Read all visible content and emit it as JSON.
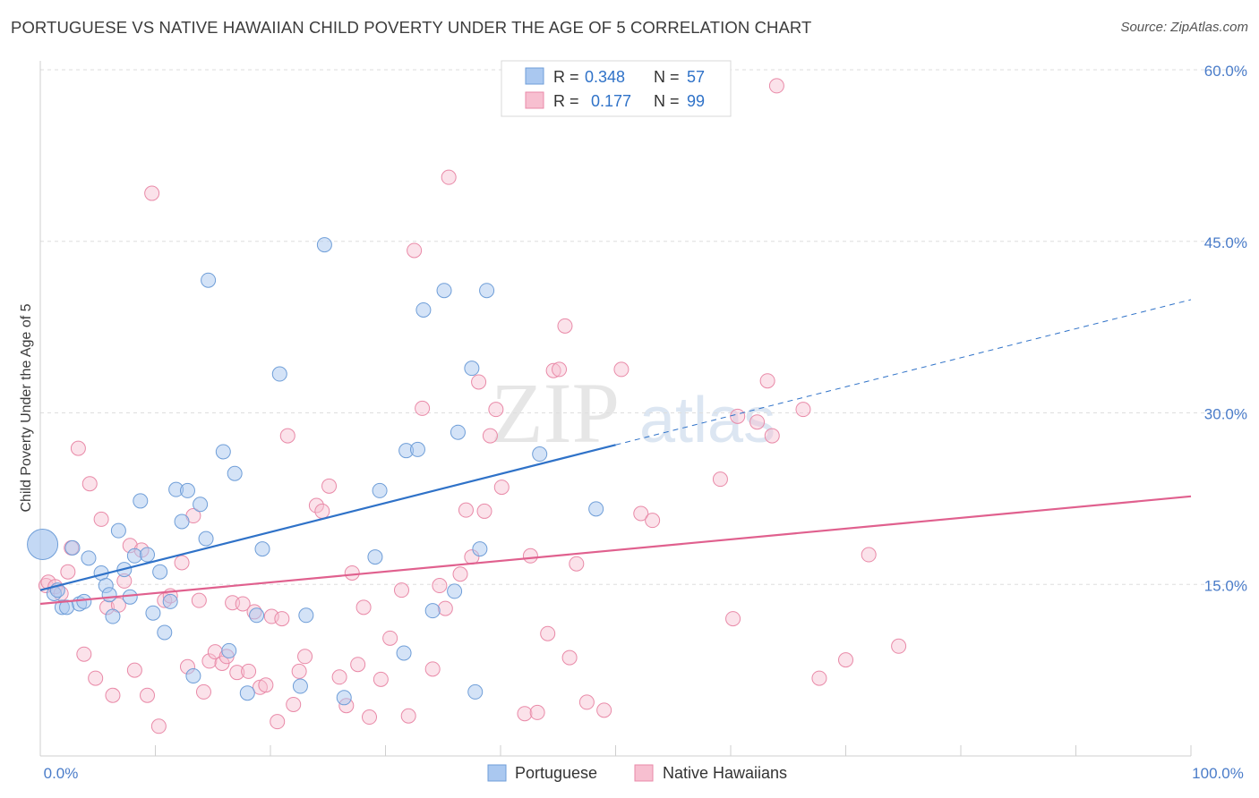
{
  "title": "PORTUGUESE VS NATIVE HAWAIIAN CHILD POVERTY UNDER THE AGE OF 5 CORRELATION CHART",
  "source": "Source: ZipAtlas.com",
  "watermark": {
    "zip": "ZIP",
    "atlas": "atlas"
  },
  "colors": {
    "portuguese_fill": "#aac8f0",
    "portuguese_stroke": "#6f9ed8",
    "portuguese_line": "#2f72c8",
    "hawaiian_fill": "#f7bfd0",
    "hawaiian_stroke": "#e98aa8",
    "hawaiian_line": "#e0608e",
    "axis_text": "#4a7cc9",
    "grid": "#dedede"
  },
  "legend_top": [
    {
      "r_label": "R =",
      "r_value": "0.348",
      "n_label": "N =",
      "n_value": "57"
    },
    {
      "r_label": "R =",
      "r_value": "0.177",
      "n_label": "N =",
      "n_value": "99"
    }
  ],
  "chart_data": {
    "type": "scatter",
    "title": "PORTUGUESE VS NATIVE HAWAIIAN CHILD POVERTY UNDER THE AGE OF 5 CORRELATION CHART",
    "xlabel": "",
    "ylabel": "Child Poverty Under the Age of 5",
    "xlim": [
      0,
      100
    ],
    "ylim": [
      0,
      60
    ],
    "x_tick_labels": [
      "0.0%",
      "100.0%"
    ],
    "y_ticks": [
      15,
      30,
      45,
      60
    ],
    "y_tick_labels": [
      "15.0%",
      "30.0%",
      "45.0%",
      "60.0%"
    ],
    "legend_position": "bottom-center",
    "series": [
      {
        "name": "Portuguese",
        "r": 0.348,
        "n": 57,
        "trend": {
          "x0": 0,
          "y0": 14.5,
          "x1": 50,
          "y1": 27.2,
          "x_dashed_end": 100,
          "y_dashed_end": 39.9
        },
        "points": [
          [
            0.2,
            18.5
          ],
          [
            1.2,
            14.2
          ],
          [
            1.5,
            14.5
          ],
          [
            1.9,
            13.0
          ],
          [
            2.3,
            13.0
          ],
          [
            2.8,
            18.2
          ],
          [
            3.4,
            13.3
          ],
          [
            3.8,
            13.5
          ],
          [
            4.2,
            17.3
          ],
          [
            5.3,
            16.0
          ],
          [
            5.7,
            14.9
          ],
          [
            6.0,
            14.1
          ],
          [
            6.3,
            12.2
          ],
          [
            6.8,
            19.7
          ],
          [
            7.3,
            16.3
          ],
          [
            7.8,
            13.9
          ],
          [
            8.2,
            17.5
          ],
          [
            8.7,
            22.3
          ],
          [
            9.3,
            17.6
          ],
          [
            9.8,
            12.5
          ],
          [
            10.4,
            16.1
          ],
          [
            10.8,
            10.8
          ],
          [
            11.3,
            13.5
          ],
          [
            11.8,
            23.3
          ],
          [
            12.3,
            20.5
          ],
          [
            12.8,
            23.2
          ],
          [
            13.3,
            7.0
          ],
          [
            13.9,
            22.0
          ],
          [
            14.4,
            19.0
          ],
          [
            14.6,
            41.6
          ],
          [
            15.9,
            26.6
          ],
          [
            16.4,
            9.2
          ],
          [
            16.9,
            24.7
          ],
          [
            18.0,
            5.5
          ],
          [
            18.8,
            12.3
          ],
          [
            19.3,
            18.1
          ],
          [
            20.8,
            33.4
          ],
          [
            22.6,
            6.1
          ],
          [
            23.1,
            12.3
          ],
          [
            24.7,
            44.7
          ],
          [
            26.4,
            5.1
          ],
          [
            29.1,
            17.4
          ],
          [
            29.5,
            23.2
          ],
          [
            31.6,
            9.0
          ],
          [
            31.8,
            26.7
          ],
          [
            32.8,
            26.8
          ],
          [
            33.3,
            39.0
          ],
          [
            34.1,
            12.7
          ],
          [
            35.1,
            40.7
          ],
          [
            36.0,
            14.4
          ],
          [
            36.3,
            28.3
          ],
          [
            37.5,
            33.9
          ],
          [
            37.8,
            5.6
          ],
          [
            38.2,
            18.1
          ],
          [
            38.8,
            40.7
          ],
          [
            43.4,
            26.4
          ],
          [
            48.3,
            21.6
          ]
        ]
      },
      {
        "name": "Native Hawaiians",
        "r": 0.177,
        "n": 99,
        "trend": {
          "x0": 0,
          "y0": 13.3,
          "x1": 100,
          "y1": 22.7
        },
        "points": [
          [
            0.5,
            14.9
          ],
          [
            0.7,
            15.2
          ],
          [
            1.3,
            14.8
          ],
          [
            1.8,
            14.2
          ],
          [
            2.4,
            16.1
          ],
          [
            2.7,
            18.2
          ],
          [
            3.3,
            26.9
          ],
          [
            3.8,
            8.9
          ],
          [
            4.3,
            23.8
          ],
          [
            4.8,
            6.8
          ],
          [
            5.3,
            20.7
          ],
          [
            5.8,
            13.0
          ],
          [
            6.3,
            5.3
          ],
          [
            6.8,
            13.2
          ],
          [
            7.3,
            15.3
          ],
          [
            7.8,
            18.4
          ],
          [
            8.2,
            7.5
          ],
          [
            8.8,
            18.0
          ],
          [
            9.3,
            5.3
          ],
          [
            9.7,
            49.2
          ],
          [
            10.3,
            2.6
          ],
          [
            10.8,
            13.6
          ],
          [
            11.3,
            14.0
          ],
          [
            12.3,
            16.9
          ],
          [
            12.8,
            7.8
          ],
          [
            13.3,
            21.0
          ],
          [
            13.8,
            13.6
          ],
          [
            14.2,
            5.6
          ],
          [
            14.7,
            8.3
          ],
          [
            15.2,
            9.1
          ],
          [
            15.8,
            8.1
          ],
          [
            16.2,
            8.7
          ],
          [
            16.7,
            13.4
          ],
          [
            17.1,
            7.3
          ],
          [
            17.6,
            13.3
          ],
          [
            18.1,
            7.4
          ],
          [
            18.6,
            12.6
          ],
          [
            19.1,
            6.0
          ],
          [
            19.6,
            6.2
          ],
          [
            20.1,
            12.2
          ],
          [
            20.6,
            3.0
          ],
          [
            21.0,
            12.0
          ],
          [
            21.5,
            28.0
          ],
          [
            22.0,
            4.5
          ],
          [
            22.5,
            7.4
          ],
          [
            23.0,
            8.7
          ],
          [
            24.0,
            21.9
          ],
          [
            24.5,
            21.4
          ],
          [
            25.1,
            23.6
          ],
          [
            26.0,
            6.9
          ],
          [
            26.6,
            4.4
          ],
          [
            27.1,
            16.0
          ],
          [
            27.6,
            8.0
          ],
          [
            28.1,
            13.0
          ],
          [
            28.6,
            3.4
          ],
          [
            29.6,
            6.7
          ],
          [
            30.4,
            10.3
          ],
          [
            31.4,
            14.5
          ],
          [
            32.0,
            3.5
          ],
          [
            32.5,
            44.2
          ],
          [
            33.2,
            30.4
          ],
          [
            34.1,
            7.6
          ],
          [
            34.7,
            14.9
          ],
          [
            35.2,
            12.9
          ],
          [
            35.5,
            50.6
          ],
          [
            36.5,
            15.9
          ],
          [
            37.0,
            21.5
          ],
          [
            37.5,
            17.4
          ],
          [
            38.1,
            32.7
          ],
          [
            38.6,
            21.4
          ],
          [
            39.1,
            28.0
          ],
          [
            39.6,
            30.3
          ],
          [
            40.1,
            23.5
          ],
          [
            42.1,
            3.7
          ],
          [
            42.6,
            17.5
          ],
          [
            43.2,
            3.8
          ],
          [
            44.1,
            10.7
          ],
          [
            44.6,
            33.7
          ],
          [
            45.1,
            33.8
          ],
          [
            45.6,
            37.6
          ],
          [
            46.0,
            8.6
          ],
          [
            46.6,
            16.8
          ],
          [
            47.5,
            4.7
          ],
          [
            49.0,
            4.0
          ],
          [
            50.5,
            33.8
          ],
          [
            52.2,
            21.2
          ],
          [
            53.2,
            20.6
          ],
          [
            59.1,
            24.2
          ],
          [
            60.2,
            12.0
          ],
          [
            60.6,
            29.7
          ],
          [
            62.3,
            29.2
          ],
          [
            63.2,
            32.8
          ],
          [
            63.6,
            28.0
          ],
          [
            64.0,
            58.6
          ],
          [
            66.3,
            30.3
          ],
          [
            67.7,
            6.8
          ],
          [
            70.0,
            8.4
          ],
          [
            72.0,
            17.6
          ],
          [
            74.6,
            9.6
          ]
        ]
      }
    ]
  },
  "legend_bottom": [
    {
      "label": "Portuguese"
    },
    {
      "label": "Native Hawaiians"
    }
  ]
}
